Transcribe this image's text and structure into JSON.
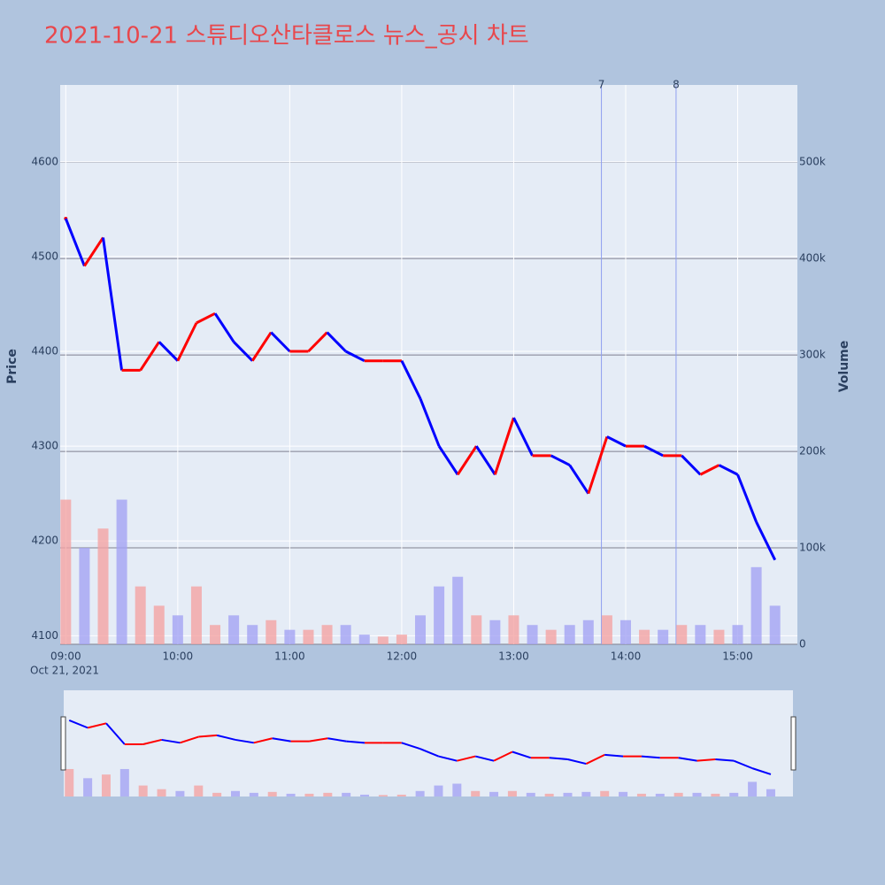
{
  "chart_data": {
    "type": "price_volume",
    "title": "2021-10-21 스튜디오산타클로스 뉴스_공시 차트",
    "y_axis_label": "Price",
    "y2_axis_label": "Volume",
    "x_date_label": "Oct 21, 2021",
    "x": [
      "09:00",
      "09:10",
      "09:20",
      "09:30",
      "09:40",
      "09:50",
      "10:00",
      "10:10",
      "10:20",
      "10:30",
      "10:40",
      "10:50",
      "11:00",
      "11:10",
      "11:20",
      "11:30",
      "11:40",
      "11:50",
      "12:00",
      "12:10",
      "12:20",
      "12:30",
      "12:40",
      "12:50",
      "13:00",
      "13:10",
      "13:20",
      "13:30",
      "13:40",
      "13:50",
      "14:00",
      "14:10",
      "14:20",
      "14:30",
      "14:40",
      "14:50",
      "15:00",
      "15:10",
      "15:20"
    ],
    "xticks": [
      "09:00",
      "10:00",
      "11:00",
      "12:00",
      "13:00",
      "14:00",
      "15:00"
    ],
    "xlim": [
      "08:57",
      "15:32"
    ],
    "series": [
      {
        "name": "Price",
        "up_color": "#ff0000",
        "down_color": "#0000ff",
        "values": [
          4540,
          4490,
          4520,
          4380,
          4380,
          4410,
          4390,
          4430,
          4440,
          4410,
          4390,
          4420,
          4400,
          4400,
          4420,
          4400,
          4390,
          4390,
          4390,
          4350,
          4300,
          4270,
          4300,
          4270,
          4330,
          4290,
          4290,
          4280,
          4250,
          4310,
          4300,
          4300,
          4290,
          4290,
          4270,
          4280,
          4270,
          4220,
          4180
        ]
      },
      {
        "name": "Volume",
        "axis": "y2",
        "up_color": "#f4a4a4",
        "down_color": "#a4a4f4",
        "values": [
          150000,
          100000,
          120000,
          150000,
          60000,
          40000,
          30000,
          60000,
          20000,
          30000,
          20000,
          25000,
          15000,
          15000,
          20000,
          20000,
          10000,
          8000,
          10000,
          30000,
          60000,
          70000,
          30000,
          25000,
          30000,
          20000,
          15000,
          20000,
          25000,
          30000,
          25000,
          15000,
          15000,
          20000,
          20000,
          15000,
          20000,
          80000,
          40000
        ]
      }
    ],
    "ylim": [
      4091,
      4681
    ],
    "yticks": [
      4100,
      4200,
      4300,
      4400,
      4500,
      4600
    ],
    "y2lim": [
      0,
      580000
    ],
    "y2ticks": [
      0,
      {
        "value": 100000,
        "label": "100k"
      },
      {
        "value": 200000,
        "label": "200k"
      },
      {
        "value": 300000,
        "label": "300k"
      },
      {
        "value": 400000,
        "label": "400k"
      },
      {
        "value": 500000,
        "label": "500k"
      }
    ],
    "annotations": [
      {
        "x": "13:47",
        "label": "7"
      },
      {
        "x": "14:27",
        "label": "8"
      }
    ],
    "grid": true,
    "range_slider": true
  }
}
